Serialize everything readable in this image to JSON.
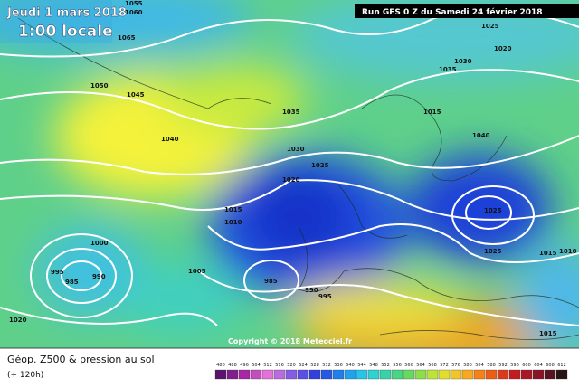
{
  "header": {
    "date": "Jeudi 1 mars 2018",
    "time": "1:00 locale",
    "run": "Run GFS 0 Z du Samedi 24 février 2018"
  },
  "isobar_labels": [
    "1055",
    "1060",
    "1065",
    "1050",
    "1045",
    "1040",
    "1035",
    "1030",
    "1025",
    "1020",
    "1015",
    "1010",
    "1005",
    "1000",
    "995",
    "990",
    "985",
    "985",
    "990",
    "995",
    "1020",
    "1025",
    "1020",
    "1035",
    "1030",
    "1015",
    "1040",
    "1025",
    "1025",
    "1015",
    "1010",
    "1015"
  ],
  "copyright": "Copyright © 2018 Meteociel.fr",
  "footer": {
    "title": "Géop. Z500 & pression au sol",
    "lead": "(+ 120h)"
  },
  "legend": [
    "480",
    "488",
    "496",
    "504",
    "512",
    "516",
    "520",
    "524",
    "528",
    "532",
    "536",
    "540",
    "544",
    "548",
    "552",
    "556",
    "560",
    "564",
    "568",
    "572",
    "576",
    "580",
    "584",
    "588",
    "592",
    "596",
    "600",
    "604",
    "608",
    "612"
  ]
}
